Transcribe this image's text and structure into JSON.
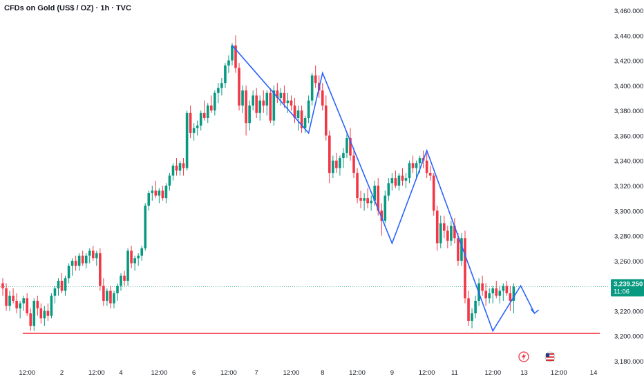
{
  "header": {
    "title": "CFDs on Gold (US$ / OZ) · 1h · TVC"
  },
  "price_tag": {
    "price": "3,239.250",
    "countdown": "11:06"
  },
  "colors": {
    "up": "#089981",
    "down": "#f23645",
    "pattern": "#2962ff",
    "support": "#f23645",
    "current": "#089981",
    "axis_text": "#131722"
  },
  "event_icons": [
    "lightning-icon",
    "us-flag-icon"
  ],
  "chart_data": {
    "type": "candlestick",
    "title": "CFDs on Gold (US$ / OZ) · 1h · TVC",
    "ylim": [
      3175,
      3465
    ],
    "y_ticks": [
      "3,460.000",
      "3,440.000",
      "3,420.000",
      "3,400.000",
      "3,380.000",
      "3,360.000",
      "3,340.000",
      "3,320.000",
      "3,300.000",
      "3,280.000",
      "3,260.000",
      "3,240.000",
      "3,220.000",
      "3,200.000",
      "3,180.000"
    ],
    "y_tick_values": [
      3460,
      3440,
      3420,
      3400,
      3380,
      3360,
      3340,
      3320,
      3300,
      3280,
      3260,
      3240,
      3220,
      3200,
      3180
    ],
    "x_ticks": [
      "12:00",
      "2",
      "12:00",
      "4",
      "12:00",
      "6",
      "12:00",
      "7",
      "12:00",
      "8",
      "12:00",
      "9",
      "12:00",
      "11",
      "12:00",
      "13",
      "12:00",
      "14"
    ],
    "x_tick_index": [
      7,
      17,
      27,
      34,
      45,
      55,
      65,
      73,
      83,
      92,
      102,
      112,
      122,
      130,
      141,
      150,
      160,
      170
    ],
    "candles": [
      [
        3242,
        3246,
        3232,
        3238
      ],
      [
        3238,
        3242,
        3220,
        3224
      ],
      [
        3224,
        3236,
        3220,
        3232
      ],
      [
        3232,
        3238,
        3226,
        3228
      ],
      [
        3228,
        3234,
        3218,
        3222
      ],
      [
        3222,
        3228,
        3214,
        3226
      ],
      [
        3226,
        3232,
        3220,
        3230
      ],
      [
        3230,
        3234,
        3216,
        3218
      ],
      [
        3218,
        3222,
        3204,
        3208
      ],
      [
        3208,
        3230,
        3204,
        3228
      ],
      [
        3228,
        3232,
        3216,
        3222
      ],
      [
        3222,
        3226,
        3210,
        3214
      ],
      [
        3214,
        3224,
        3208,
        3220
      ],
      [
        3220,
        3226,
        3212,
        3216
      ],
      [
        3216,
        3234,
        3214,
        3232
      ],
      [
        3232,
        3240,
        3226,
        3238
      ],
      [
        3238,
        3246,
        3232,
        3244
      ],
      [
        3244,
        3250,
        3234,
        3236
      ],
      [
        3236,
        3248,
        3232,
        3246
      ],
      [
        3246,
        3258,
        3242,
        3256
      ],
      [
        3256,
        3262,
        3248,
        3260
      ],
      [
        3260,
        3264,
        3252,
        3256
      ],
      [
        3256,
        3266,
        3252,
        3264
      ],
      [
        3264,
        3268,
        3256,
        3258
      ],
      [
        3258,
        3266,
        3254,
        3264
      ],
      [
        3264,
        3270,
        3258,
        3268
      ],
      [
        3268,
        3272,
        3260,
        3262
      ],
      [
        3262,
        3268,
        3256,
        3266
      ],
      [
        3266,
        3270,
        3236,
        3240
      ],
      [
        3240,
        3246,
        3224,
        3228
      ],
      [
        3228,
        3238,
        3224,
        3236
      ],
      [
        3236,
        3240,
        3222,
        3226
      ],
      [
        3226,
        3236,
        3222,
        3234
      ],
      [
        3234,
        3242,
        3228,
        3240
      ],
      [
        3240,
        3250,
        3236,
        3248
      ],
      [
        3248,
        3252,
        3240,
        3244
      ],
      [
        3244,
        3270,
        3240,
        3268
      ],
      [
        3268,
        3272,
        3254,
        3258
      ],
      [
        3258,
        3264,
        3252,
        3262
      ],
      [
        3262,
        3266,
        3256,
        3264
      ],
      [
        3264,
        3272,
        3260,
        3270
      ],
      [
        3270,
        3306,
        3268,
        3304
      ],
      [
        3304,
        3316,
        3300,
        3314
      ],
      [
        3314,
        3320,
        3308,
        3316
      ],
      [
        3316,
        3324,
        3310,
        3312
      ],
      [
        3312,
        3318,
        3306,
        3316
      ],
      [
        3316,
        3320,
        3308,
        3310
      ],
      [
        3310,
        3322,
        3306,
        3320
      ],
      [
        3320,
        3330,
        3316,
        3328
      ],
      [
        3328,
        3338,
        3324,
        3336
      ],
      [
        3336,
        3342,
        3328,
        3332
      ],
      [
        3332,
        3340,
        3328,
        3338
      ],
      [
        3338,
        3342,
        3328,
        3334
      ],
      [
        3334,
        3380,
        3332,
        3378
      ],
      [
        3378,
        3384,
        3358,
        3362
      ],
      [
        3362,
        3370,
        3356,
        3366
      ],
      [
        3366,
        3372,
        3360,
        3368
      ],
      [
        3368,
        3380,
        3364,
        3378
      ],
      [
        3378,
        3388,
        3372,
        3374
      ],
      [
        3374,
        3386,
        3370,
        3384
      ],
      [
        3384,
        3392,
        3378,
        3380
      ],
      [
        3380,
        3396,
        3376,
        3394
      ],
      [
        3394,
        3402,
        3386,
        3398
      ],
      [
        3398,
        3406,
        3392,
        3402
      ],
      [
        3402,
        3418,
        3398,
        3416
      ],
      [
        3416,
        3424,
        3410,
        3420
      ],
      [
        3420,
        3434,
        3416,
        3432
      ],
      [
        3432,
        3440,
        3410,
        3414
      ],
      [
        3414,
        3418,
        3380,
        3384
      ],
      [
        3384,
        3400,
        3378,
        3396
      ],
      [
        3396,
        3400,
        3360,
        3370
      ],
      [
        3370,
        3388,
        3364,
        3384
      ],
      [
        3384,
        3396,
        3380,
        3392
      ],
      [
        3392,
        3398,
        3374,
        3378
      ],
      [
        3378,
        3392,
        3372,
        3388
      ],
      [
        3388,
        3396,
        3378,
        3384
      ],
      [
        3384,
        3396,
        3376,
        3394
      ],
      [
        3394,
        3398,
        3370,
        3372
      ],
      [
        3372,
        3400,
        3368,
        3396
      ],
      [
        3396,
        3402,
        3386,
        3390
      ],
      [
        3390,
        3398,
        3384,
        3394
      ],
      [
        3394,
        3400,
        3382,
        3386
      ],
      [
        3386,
        3394,
        3378,
        3388
      ],
      [
        3388,
        3392,
        3380,
        3384
      ],
      [
        3384,
        3390,
        3370,
        3374
      ],
      [
        3374,
        3384,
        3364,
        3380
      ],
      [
        3380,
        3384,
        3362,
        3366
      ],
      [
        3366,
        3376,
        3362,
        3374
      ],
      [
        3374,
        3392,
        3370,
        3388
      ],
      [
        3388,
        3410,
        3384,
        3408
      ],
      [
        3408,
        3416,
        3398,
        3402
      ],
      [
        3402,
        3408,
        3390,
        3396
      ],
      [
        3396,
        3402,
        3380,
        3384
      ],
      [
        3384,
        3392,
        3356,
        3360
      ],
      [
        3360,
        3364,
        3322,
        3330
      ],
      [
        3330,
        3344,
        3326,
        3340
      ],
      [
        3340,
        3346,
        3330,
        3334
      ],
      [
        3334,
        3344,
        3328,
        3342
      ],
      [
        3342,
        3350,
        3334,
        3346
      ],
      [
        3346,
        3362,
        3342,
        3358
      ],
      [
        3358,
        3366,
        3340,
        3344
      ],
      [
        3344,
        3350,
        3326,
        3330
      ],
      [
        3330,
        3334,
        3306,
        3310
      ],
      [
        3310,
        3316,
        3302,
        3308
      ],
      [
        3308,
        3314,
        3300,
        3310
      ],
      [
        3310,
        3318,
        3302,
        3306
      ],
      [
        3306,
        3312,
        3300,
        3308
      ],
      [
        3308,
        3324,
        3304,
        3320
      ],
      [
        3320,
        3326,
        3296,
        3300
      ],
      [
        3300,
        3306,
        3280,
        3292
      ],
      [
        3292,
        3316,
        3290,
        3312
      ],
      [
        3312,
        3326,
        3308,
        3322
      ],
      [
        3322,
        3330,
        3316,
        3326
      ],
      [
        3326,
        3332,
        3318,
        3320
      ],
      [
        3320,
        3330,
        3316,
        3328
      ],
      [
        3328,
        3334,
        3320,
        3324
      ],
      [
        3324,
        3330,
        3318,
        3326
      ],
      [
        3326,
        3340,
        3322,
        3338
      ],
      [
        3338,
        3344,
        3330,
        3334
      ],
      [
        3334,
        3340,
        3326,
        3338
      ],
      [
        3338,
        3344,
        3330,
        3342
      ],
      [
        3342,
        3348,
        3334,
        3340
      ],
      [
        3340,
        3346,
        3326,
        3330
      ],
      [
        3330,
        3336,
        3324,
        3328
      ],
      [
        3328,
        3330,
        3296,
        3300
      ],
      [
        3300,
        3304,
        3268,
        3274
      ],
      [
        3274,
        3296,
        3270,
        3290
      ],
      [
        3290,
        3296,
        3278,
        3284
      ],
      [
        3284,
        3288,
        3270,
        3276
      ],
      [
        3276,
        3292,
        3272,
        3288
      ],
      [
        3288,
        3294,
        3274,
        3278
      ],
      [
        3278,
        3282,
        3256,
        3260
      ],
      [
        3260,
        3282,
        3256,
        3278
      ],
      [
        3278,
        3284,
        3226,
        3230
      ],
      [
        3230,
        3236,
        3208,
        3212
      ],
      [
        3212,
        3222,
        3206,
        3218
      ],
      [
        3218,
        3232,
        3214,
        3228
      ],
      [
        3228,
        3246,
        3224,
        3242
      ],
      [
        3242,
        3248,
        3232,
        3236
      ],
      [
        3236,
        3242,
        3224,
        3230
      ],
      [
        3230,
        3238,
        3226,
        3234
      ],
      [
        3234,
        3240,
        3226,
        3238
      ],
      [
        3238,
        3244,
        3230,
        3232
      ],
      [
        3232,
        3240,
        3226,
        3236
      ],
      [
        3236,
        3242,
        3228,
        3240
      ],
      [
        3240,
        3244,
        3232,
        3234
      ],
      [
        3234,
        3240,
        3220,
        3228
      ],
      [
        3228,
        3242,
        3218,
        3239.25
      ]
    ],
    "pattern_line": {
      "points": [
        [
          66,
          3432
        ],
        [
          88,
          3362
        ],
        [
          92,
          3410
        ],
        [
          112,
          3274
        ],
        [
          122,
          3348
        ],
        [
          141,
          3204
        ],
        [
          149,
          3240
        ],
        [
          153,
          3218
        ]
      ]
    },
    "support_level": 3202,
    "current_price": 3239.25
  }
}
